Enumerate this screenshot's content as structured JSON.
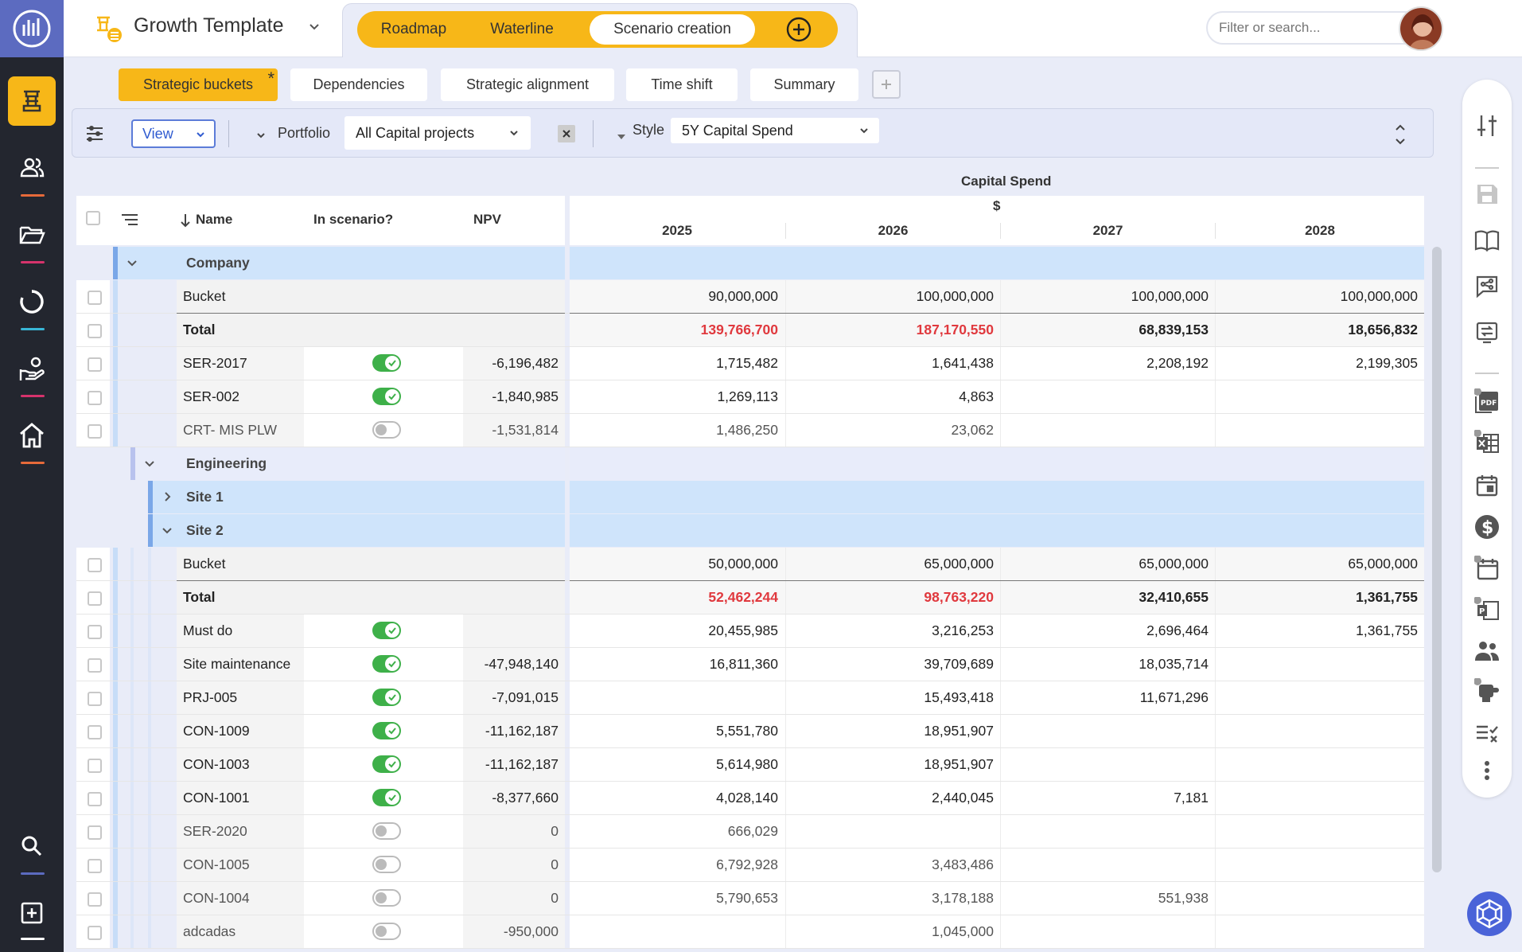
{
  "app": {
    "title": "Growth Template",
    "mode_tabs": [
      {
        "label": "Roadmap",
        "active": false
      },
      {
        "label": "Waterline",
        "active": false
      },
      {
        "label": "Scenario creation",
        "active": true
      }
    ],
    "search_placeholder": "Filter or search...",
    "accent_color": "#f7b718",
    "nav_icons": [
      "logo-icon",
      "strategy-icon",
      "people-icon",
      "folder-icon",
      "cycle-icon",
      "investment-icon",
      "home-icon",
      "search-icon",
      "add-icon"
    ]
  },
  "subtabs": [
    {
      "label": "Strategic buckets",
      "active": true,
      "modified_marker": "*"
    },
    {
      "label": "Dependencies",
      "active": false
    },
    {
      "label": "Strategic alignment",
      "active": false
    },
    {
      "label": "Time shift",
      "active": false
    },
    {
      "label": "Summary",
      "active": false
    }
  ],
  "filterbar": {
    "view_label": "View",
    "portfolio_label": "Portfolio",
    "portfolio_value": "All Capital projects",
    "style_label": "Style",
    "style_value": "5Y Capital Spend"
  },
  "grid": {
    "columns": {
      "name": "Name",
      "in_scenario": "In scenario?",
      "npv": "NPV",
      "group_title": "Capital Spend",
      "currency": "$",
      "years": [
        "2025",
        "2026",
        "2027",
        "2028"
      ]
    },
    "rows": [
      {
        "type": "group",
        "level": 0,
        "label": "Company",
        "expanded": true
      },
      {
        "type": "bucket",
        "level": 0,
        "name": "Bucket",
        "values": [
          "90,000,000",
          "100,000,000",
          "100,000,000",
          "100,000,000"
        ]
      },
      {
        "type": "total",
        "level": 0,
        "name": "Total",
        "values": [
          "139,766,700",
          "187,170,550",
          "68,839,153",
          "18,656,832"
        ],
        "red": [
          true,
          true,
          false,
          false
        ]
      },
      {
        "type": "item",
        "level": 0,
        "name": "SER-2017",
        "on": true,
        "npv": "-6,196,482",
        "values": [
          "1,715,482",
          "1,641,438",
          "2,208,192",
          "2,199,305"
        ]
      },
      {
        "type": "item",
        "level": 0,
        "name": "SER-002",
        "on": true,
        "npv": "-1,840,985",
        "values": [
          "1,269,113",
          "4,863",
          "",
          ""
        ]
      },
      {
        "type": "item",
        "level": 0,
        "name": "CRT- MIS PLW",
        "on": false,
        "npv": "-1,531,814",
        "values": [
          "1,486,250",
          "23,062",
          "",
          ""
        ]
      },
      {
        "type": "group",
        "level": 1,
        "label": "Engineering",
        "expanded": true
      },
      {
        "type": "group",
        "level": 2,
        "label": "Site 1",
        "expanded": false
      },
      {
        "type": "group",
        "level": 2,
        "label": "Site 2",
        "expanded": true
      },
      {
        "type": "bucket",
        "level": 2,
        "name": "Bucket",
        "values": [
          "50,000,000",
          "65,000,000",
          "65,000,000",
          "65,000,000"
        ]
      },
      {
        "type": "total",
        "level": 2,
        "name": "Total",
        "values": [
          "52,462,244",
          "98,763,220",
          "32,410,655",
          "1,361,755"
        ],
        "red": [
          true,
          true,
          false,
          false
        ]
      },
      {
        "type": "item",
        "level": 2,
        "name": "Must do",
        "on": true,
        "npv": "",
        "values": [
          "20,455,985",
          "3,216,253",
          "2,696,464",
          "1,361,755"
        ]
      },
      {
        "type": "item",
        "level": 2,
        "name": "Site maintenance",
        "on": true,
        "npv": "-47,948,140",
        "values": [
          "16,811,360",
          "39,709,689",
          "18,035,714",
          ""
        ]
      },
      {
        "type": "item",
        "level": 2,
        "name": "PRJ-005",
        "on": true,
        "npv": "-7,091,015",
        "values": [
          "",
          "15,493,418",
          "11,671,296",
          ""
        ]
      },
      {
        "type": "item",
        "level": 2,
        "name": "CON-1009",
        "on": true,
        "npv": "-11,162,187",
        "values": [
          "5,551,780",
          "18,951,907",
          "",
          ""
        ]
      },
      {
        "type": "item",
        "level": 2,
        "name": "CON-1003",
        "on": true,
        "npv": "-11,162,187",
        "values": [
          "5,614,980",
          "18,951,907",
          "",
          ""
        ]
      },
      {
        "type": "item",
        "level": 2,
        "name": "CON-1001",
        "on": true,
        "npv": "-8,377,660",
        "values": [
          "4,028,140",
          "2,440,045",
          "7,181",
          ""
        ]
      },
      {
        "type": "item",
        "level": 2,
        "name": "SER-2020",
        "on": false,
        "npv": "0",
        "values": [
          "666,029",
          "",
          "",
          ""
        ]
      },
      {
        "type": "item",
        "level": 2,
        "name": "CON-1005",
        "on": false,
        "npv": "0",
        "values": [
          "6,792,928",
          "3,483,486",
          "",
          ""
        ]
      },
      {
        "type": "item",
        "level": 2,
        "name": "CON-1004",
        "on": false,
        "npv": "0",
        "values": [
          "5,790,653",
          "3,178,188",
          "551,938",
          ""
        ]
      },
      {
        "type": "item",
        "level": 2,
        "name": "adcadas",
        "on": false,
        "npv": "-950,000",
        "values": [
          "",
          "1,045,000",
          "",
          ""
        ]
      }
    ]
  }
}
